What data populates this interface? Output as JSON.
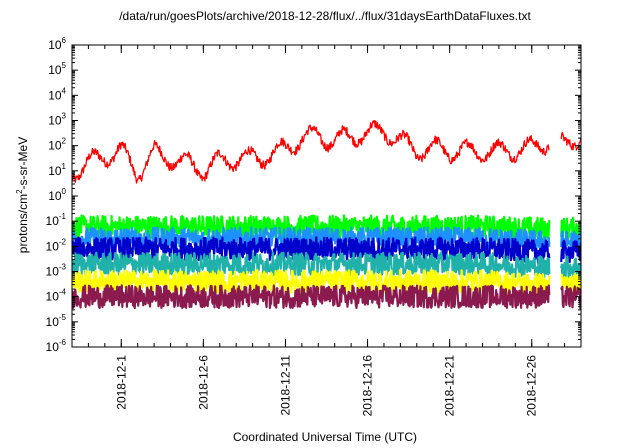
{
  "chart_data": {
    "type": "line",
    "title": "/data/run/goesPlots/archive/2018-12-28/flux/../flux/31daysEarthDataFluxes.txt",
    "xlabel": "Coordinated Universal Time (UTC)",
    "ylabel": "protons/cm²-s-sr-MeV",
    "ylabel_parts": {
      "prefix": "protons/cm",
      "sup": "2",
      "suffix": "-s-sr-MeV"
    },
    "y_scale": "log",
    "ylim": [
      1e-06,
      1000000.0
    ],
    "y_ticks": [
      {
        "value": 1e-06,
        "base": "10",
        "exp": "-6"
      },
      {
        "value": 1e-05,
        "base": "10",
        "exp": "-5"
      },
      {
        "value": 0.0001,
        "base": "10",
        "exp": "-4"
      },
      {
        "value": 0.001,
        "base": "10",
        "exp": "-3"
      },
      {
        "value": 0.01,
        "base": "10",
        "exp": "-2"
      },
      {
        "value": 0.1,
        "base": "10",
        "exp": "-1"
      },
      {
        "value": 1,
        "base": "10",
        "exp": "0"
      },
      {
        "value": 10,
        "base": "10",
        "exp": "1"
      },
      {
        "value": 100,
        "base": "10",
        "exp": "2"
      },
      {
        "value": 1000,
        "base": "10",
        "exp": "3"
      },
      {
        "value": 10000,
        "base": "10",
        "exp": "4"
      },
      {
        "value": 100000,
        "base": "10",
        "exp": "5"
      },
      {
        "value": 1000000,
        "base": "10",
        "exp": "6"
      }
    ],
    "xlim": [
      "2018-11-28",
      "2018-12-29"
    ],
    "x_ticks": [
      "2018-12-1",
      "2018-12-6",
      "2018-12-11",
      "2018-12-16",
      "2018-12-21",
      "2018-12-26"
    ],
    "x_tick_dates": [
      "2018-12-01",
      "2018-12-06",
      "2018-12-11",
      "2018-12-16",
      "2018-12-21",
      "2018-12-26"
    ],
    "data_gap": [
      "2018-12-27T02:00",
      "2018-12-27T19:00"
    ],
    "grid": false,
    "legend": "none",
    "series": [
      {
        "color": "#ff0000",
        "x": [
          "2018-11-28",
          "2018-11-29",
          "2018-11-30",
          "2018-12-01",
          "2018-12-02",
          "2018-12-03",
          "2018-12-04",
          "2018-12-05",
          "2018-12-06",
          "2018-12-07",
          "2018-12-08",
          "2018-12-09",
          "2018-12-10",
          "2018-12-11",
          "2018-12-12",
          "2018-12-13",
          "2018-12-14",
          "2018-12-15",
          "2018-12-16",
          "2018-12-17",
          "2018-12-18",
          "2018-12-19",
          "2018-12-20",
          "2018-12-21",
          "2018-12-22",
          "2018-12-23",
          "2018-12-24",
          "2018-12-25",
          "2018-12-26",
          "2018-12-27",
          "2018-12-28",
          "2018-12-29"
        ],
        "y": [
          8,
          20,
          40,
          60,
          8,
          50,
          30,
          20,
          10,
          25,
          30,
          30,
          40,
          80,
          200,
          250,
          150,
          250,
          300,
          400,
          150,
          60,
          80,
          60,
          60,
          60,
          60,
          70,
          80,
          150,
          100,
          300
        ]
      },
      {
        "color": "#00ff00",
        "x": [
          "2018-11-28",
          "2018-12-03",
          "2018-12-08",
          "2018-12-13",
          "2018-12-18",
          "2018-12-23",
          "2018-12-27",
          "2018-12-29"
        ],
        "y": [
          0.06,
          0.06,
          0.06,
          0.06,
          0.06,
          0.06,
          0.05,
          0.05
        ]
      },
      {
        "color": "#1e90ff",
        "x": [
          "2018-11-28",
          "2018-12-03",
          "2018-12-08",
          "2018-12-13",
          "2018-12-18",
          "2018-12-23",
          "2018-12-27",
          "2018-12-29"
        ],
        "y": [
          0.02,
          0.02,
          0.02,
          0.02,
          0.02,
          0.02,
          0.015,
          0.015
        ]
      },
      {
        "color": "#0000cd",
        "x": [
          "2018-11-28",
          "2018-12-03",
          "2018-12-08",
          "2018-12-13",
          "2018-12-18",
          "2018-12-23",
          "2018-12-27",
          "2018-12-29"
        ],
        "y": [
          0.008,
          0.008,
          0.008,
          0.008,
          0.008,
          0.008,
          0.006,
          0.006
        ]
      },
      {
        "color": "#20b2aa",
        "x": [
          "2018-11-28",
          "2018-12-03",
          "2018-12-08",
          "2018-12-13",
          "2018-12-18",
          "2018-12-23",
          "2018-12-27",
          "2018-12-29"
        ],
        "y": [
          0.002,
          0.002,
          0.002,
          0.002,
          0.002,
          0.002,
          0.0015,
          0.0015
        ]
      },
      {
        "color": "#ffff00",
        "x": [
          "2018-11-28",
          "2018-12-03",
          "2018-12-08",
          "2018-12-13",
          "2018-12-18",
          "2018-12-23",
          "2018-12-27",
          "2018-12-29"
        ],
        "y": [
          0.0004,
          0.0004,
          0.0004,
          0.0004,
          0.0004,
          0.0004,
          0.0003,
          0.0003
        ]
      },
      {
        "color": "#8b1a4f",
        "x": [
          "2018-11-28",
          "2018-12-03",
          "2018-12-08",
          "2018-12-13",
          "2018-12-18",
          "2018-12-23",
          "2018-12-27",
          "2018-12-29"
        ],
        "y": [
          0.0001,
          0.0001,
          0.0001,
          0.0001,
          0.0001,
          0.0001,
          0.0001,
          9e-05
        ]
      }
    ]
  }
}
